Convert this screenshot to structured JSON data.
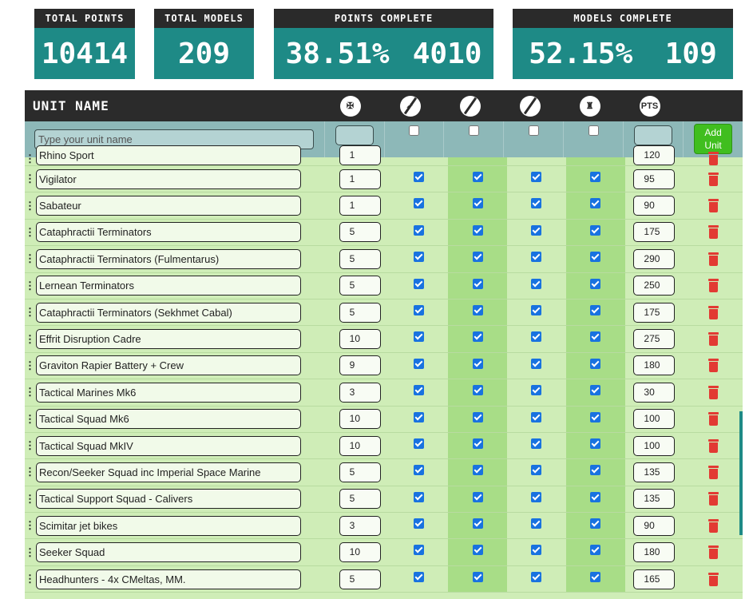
{
  "stats": {
    "total_points": {
      "label": "TOTAL POINTS",
      "value": "10414"
    },
    "total_models": {
      "label": "TOTAL MODELS",
      "value": "209"
    },
    "points_complete": {
      "label": "POINTS COMPLETE",
      "percent": "38.51%",
      "value": "4010"
    },
    "models_complete": {
      "label": "MODELS COMPLETE",
      "percent": "52.15%",
      "value": "109"
    }
  },
  "table": {
    "unit_header": "UNIT NAME",
    "columns": [
      {
        "icon": "lion-icon"
      },
      {
        "icon": "rocket-icon"
      },
      {
        "icon": "paint-brush-icon"
      },
      {
        "icon": "crossed-brush-icon"
      },
      {
        "icon": "marine-icon"
      },
      {
        "icon": "pts-icon",
        "label": "PTS"
      }
    ],
    "filter": {
      "name_placeholder": "Type your unit name",
      "add_label_1": "Add",
      "add_label_2": "Unit"
    },
    "partial_row": {
      "name": "Rhino Sport",
      "qty": "1",
      "pts": "120"
    },
    "rows": [
      {
        "name": "Vigilator",
        "qty": "1",
        "pts": "95"
      },
      {
        "name": "Sabateur",
        "qty": "1",
        "pts": "90"
      },
      {
        "name": "Cataphractii Terminators",
        "qty": "5",
        "pts": "175"
      },
      {
        "name": "Cataphractii Terminators (Fulmentarus)",
        "qty": "5",
        "pts": "290"
      },
      {
        "name": "Lernean Terminators",
        "qty": "5",
        "pts": "250"
      },
      {
        "name": "Cataphractii Terminators (Sekhmet Cabal)",
        "qty": "5",
        "pts": "175"
      },
      {
        "name": "Effrit Disruption Cadre",
        "qty": "10",
        "pts": "275"
      },
      {
        "name": "Graviton Rapier Battery + Crew",
        "qty": "9",
        "pts": "180"
      },
      {
        "name": "Tactical Marines Mk6",
        "qty": "3",
        "pts": "30"
      },
      {
        "name": "Tactical Squad Mk6",
        "qty": "10",
        "pts": "100"
      },
      {
        "name": "Tactical Squad MkIV",
        "qty": "10",
        "pts": "100"
      },
      {
        "name": "Recon/Seeker Squad inc Imperial Space Marine",
        "qty": "5",
        "pts": "135"
      },
      {
        "name": "Tactical Support Squad - Calivers",
        "qty": "5",
        "pts": "135"
      },
      {
        "name": "Scimitar jet bikes",
        "qty": "3",
        "pts": "90"
      },
      {
        "name": "Seeker Squad",
        "qty": "10",
        "pts": "180"
      },
      {
        "name": "Headhunters - 4x CMeltas, MM.",
        "qty": "5",
        "pts": "165"
      }
    ]
  }
}
